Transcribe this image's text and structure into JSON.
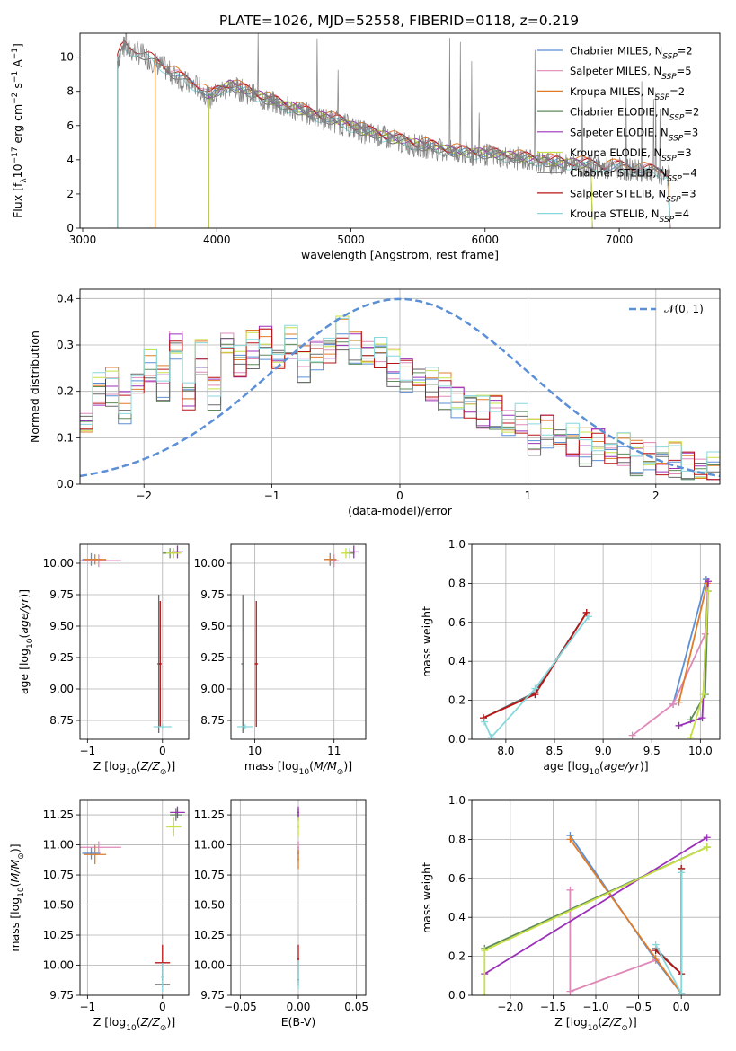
{
  "figure_title": "PLATE=1026, MJD=52558, FIBERID=0118, z=0.219",
  "colors": {
    "Chabrier MILES": "#5b8fd6",
    "Salpeter MILES": "#e088b8",
    "Kroupa MILES": "#e07c28",
    "Chabrier ELODIE": "#5f8a5a",
    "Salpeter ELODIE": "#9b30b8",
    "Kroupa ELODIE": "#c8e046",
    "Chabrier STELIB": "#6a6a6a",
    "Salpeter STELIB": "#b81414",
    "Kroupa STELIB": "#88d8dc",
    "normal_curve": "#5b8fd6",
    "observed_spectrum": "#808080"
  },
  "chart_data": [
    {
      "type": "line",
      "panel": "spectrum",
      "xlabel": "wavelength [Angstrom, rest frame]",
      "ylabel": "Flux [f_λ 10^-17 erg cm^-2 s^-1 A^-1]",
      "xlim": [
        2980,
        7750
      ],
      "ylim": [
        0,
        11.4
      ],
      "xticks": [
        3000,
        4000,
        5000,
        6000,
        7000
      ],
      "yticks": [
        0,
        2,
        4,
        6,
        8,
        10
      ],
      "grid": false,
      "legend_position": "top-right",
      "legend": [
        {
          "name": "Chabrier MILES",
          "n": "2"
        },
        {
          "name": "Salpeter MILES",
          "n": "5"
        },
        {
          "name": "Kroupa MILES",
          "n": "2"
        },
        {
          "name": "Chabrier ELODIE",
          "n": "2"
        },
        {
          "name": "Salpeter ELODIE",
          "n": "3"
        },
        {
          "name": "Kroupa ELODIE",
          "n": "3"
        },
        {
          "name": "Chabrier STELIB",
          "n": "4"
        },
        {
          "name": "Salpeter STELIB",
          "n": "3"
        },
        {
          "name": "Kroupa STELIB",
          "n": "4"
        }
      ],
      "observed": {
        "x": [
          3260,
          3280,
          3300,
          3350,
          3400,
          3450,
          3500,
          3550,
          3600,
          3650,
          3700,
          3750,
          3800,
          3850,
          3900,
          3950,
          4000,
          4100,
          4200,
          4300,
          4400,
          4500,
          4600,
          4700,
          4800,
          4900,
          5000,
          5100,
          5200,
          5300,
          5400,
          5500,
          5600,
          5700,
          5800,
          5900,
          6000,
          6100,
          6200,
          6300,
          6400,
          6500,
          6600,
          6700,
          6800,
          6900,
          7000,
          7100,
          7200,
          7300,
          7380
        ],
        "y": [
          9.8,
          10.2,
          10.6,
          10.4,
          10.3,
          10.1,
          9.9,
          9.6,
          9.4,
          9.1,
          8.9,
          8.6,
          8.4,
          8.3,
          8.0,
          7.6,
          7.9,
          8.3,
          8.0,
          7.7,
          7.4,
          7.1,
          6.9,
          6.6,
          6.4,
          6.2,
          5.9,
          5.6,
          5.4,
          5.2,
          5.0,
          4.8,
          4.7,
          4.5,
          4.4,
          4.3,
          4.3,
          4.2,
          4.1,
          4.0,
          3.9,
          3.8,
          3.7,
          3.7,
          3.6,
          3.5,
          3.5,
          3.4,
          3.3,
          3.2,
          3.1
        ]
      },
      "models": [
        {
          "name": "Chabrier MILES",
          "start": 3540,
          "end": 7380,
          "offset": 0.12
        },
        {
          "name": "Salpeter MILES",
          "start": 3540,
          "end": 7380,
          "offset": 0.25
        },
        {
          "name": "Kroupa MILES",
          "start": 3540,
          "end": 7380,
          "offset": 0.3
        },
        {
          "name": "Chabrier ELODIE",
          "start": 3940,
          "end": 6800,
          "offset": 0.05
        },
        {
          "name": "Salpeter ELODIE",
          "start": 3940,
          "end": 6800,
          "offset": 0.15
        },
        {
          "name": "Kroupa ELODIE",
          "start": 3940,
          "end": 6800,
          "offset": 0.1
        },
        {
          "name": "Chabrier STELIB",
          "start": 3260,
          "end": 7380,
          "offset": 0.0
        },
        {
          "name": "Salpeter STELIB",
          "start": 3260,
          "end": 7380,
          "offset": 0.2
        },
        {
          "name": "Kroupa STELIB",
          "start": 3260,
          "end": 7380,
          "offset": -0.05
        }
      ]
    },
    {
      "type": "histogram",
      "panel": "residuals",
      "xlabel": "(data-model)/error",
      "ylabel": "Normed distribution",
      "xlim": [
        -2.5,
        2.5
      ],
      "ylim": [
        0,
        0.42
      ],
      "xticks": [
        -2,
        -1,
        0,
        1,
        2
      ],
      "yticks": [
        0.0,
        0.1,
        0.2,
        0.3,
        0.4
      ],
      "grid": true,
      "legend_position": "top-right",
      "legend_label": "𝒩(0, 1)",
      "bin_edges": [
        -2.5,
        -2.4,
        -2.3,
        -2.2,
        -2.1,
        -2.0,
        -1.9,
        -1.8,
        -1.7,
        -1.6,
        -1.5,
        -1.4,
        -1.3,
        -1.2,
        -1.1,
        -1.0,
        -0.9,
        -0.8,
        -0.7,
        -0.6,
        -0.5,
        -0.4,
        -0.3,
        -0.2,
        -0.1,
        0.0,
        0.1,
        0.2,
        0.3,
        0.4,
        0.5,
        0.6,
        0.7,
        0.8,
        0.9,
        1.0,
        1.1,
        1.2,
        1.3,
        1.4,
        1.5,
        1.6,
        1.7,
        1.8,
        1.9,
        2.0,
        2.1,
        2.2,
        2.3,
        2.4,
        2.5
      ],
      "base_heights": [
        0.13,
        0.2,
        0.21,
        0.17,
        0.22,
        0.25,
        0.22,
        0.3,
        0.19,
        0.27,
        0.2,
        0.3,
        0.26,
        0.29,
        0.31,
        0.27,
        0.3,
        0.26,
        0.28,
        0.29,
        0.32,
        0.3,
        0.28,
        0.28,
        0.25,
        0.24,
        0.23,
        0.21,
        0.2,
        0.18,
        0.17,
        0.15,
        0.16,
        0.13,
        0.14,
        0.1,
        0.12,
        0.1,
        0.09,
        0.08,
        0.09,
        0.07,
        0.07,
        0.06,
        0.06,
        0.05,
        0.05,
        0.04,
        0.03,
        0.03
      ],
      "normal_curve": {
        "mu": 0,
        "sigma": 1
      }
    },
    {
      "type": "scatter",
      "panel": "age_vs_Z",
      "xlabel": "Z [log10(Z/Z⊙)]",
      "ylabel": "age  [log10(age/yr)]",
      "xlim": [
        -1.1,
        0.35
      ],
      "ylim": [
        8.6,
        10.15
      ],
      "xticks": [
        -1,
        0
      ],
      "yticks": [
        8.75,
        9.0,
        9.25,
        9.5,
        9.75,
        10.0
      ],
      "grid": true,
      "points": [
        {
          "s": "Chabrier MILES",
          "x": -0.95,
          "y": 10.03,
          "xe": 0.12,
          "ye": 0.05
        },
        {
          "s": "Salpeter MILES",
          "x": -0.85,
          "y": 10.02,
          "xe": 0.3,
          "ye": 0.05
        },
        {
          "s": "Kroupa MILES",
          "x": -0.9,
          "y": 10.03,
          "xe": 0.15,
          "ye": 0.04
        },
        {
          "s": "Chabrier ELODIE",
          "x": 0.1,
          "y": 10.08,
          "xe": 0.1,
          "ye": 0.04
        },
        {
          "s": "Salpeter ELODIE",
          "x": 0.2,
          "y": 10.09,
          "xe": 0.08,
          "ye": 0.05
        },
        {
          "s": "Kroupa ELODIE",
          "x": 0.15,
          "y": 10.08,
          "xe": 0.1,
          "ye": 0.04
        },
        {
          "s": "Chabrier STELIB",
          "x": -0.05,
          "y": 9.2,
          "xe": 0.02,
          "ye": 0.55
        },
        {
          "s": "Salpeter STELIB",
          "x": -0.03,
          "y": 9.2,
          "xe": 0.02,
          "ye": 0.5
        },
        {
          "s": "Kroupa STELIB",
          "x": 0.0,
          "y": 8.7,
          "xe": 0.12,
          "ye": 0.02
        }
      ]
    },
    {
      "type": "scatter",
      "panel": "age_vs_mass",
      "xlabel": "mass [log10(M/M⊙)]",
      "ylabel": "",
      "xlim": [
        9.7,
        11.4
      ],
      "ylim": [
        8.6,
        10.15
      ],
      "xticks": [
        10,
        11
      ],
      "yticks": [
        8.75,
        9.0,
        9.25,
        9.5,
        9.75,
        10.0
      ],
      "grid": true,
      "points": [
        {
          "s": "Chabrier MILES",
          "x": 10.95,
          "y": 10.03,
          "xe": 0.08,
          "ye": 0.05
        },
        {
          "s": "Salpeter MILES",
          "x": 11.0,
          "y": 10.02,
          "xe": 0.06,
          "ye": 0.05
        },
        {
          "s": "Kroupa MILES",
          "x": 10.95,
          "y": 10.03,
          "xe": 0.08,
          "ye": 0.04
        },
        {
          "s": "Chabrier ELODIE",
          "x": 11.2,
          "y": 10.08,
          "xe": 0.06,
          "ye": 0.04
        },
        {
          "s": "Salpeter ELODIE",
          "x": 11.25,
          "y": 10.09,
          "xe": 0.06,
          "ye": 0.05
        },
        {
          "s": "Kroupa ELODIE",
          "x": 11.15,
          "y": 10.08,
          "xe": 0.06,
          "ye": 0.04
        },
        {
          "s": "Chabrier STELIB",
          "x": 9.85,
          "y": 9.2,
          "xe": 0.02,
          "ye": 0.55
        },
        {
          "s": "Salpeter STELIB",
          "x": 10.02,
          "y": 9.2,
          "xe": 0.02,
          "ye": 0.5
        },
        {
          "s": "Kroupa STELIB",
          "x": 9.88,
          "y": 8.7,
          "xe": 0.1,
          "ye": 0.02
        }
      ]
    },
    {
      "type": "line",
      "panel": "mass_weight_vs_age",
      "xlabel": "age  [log10(age/yr)]",
      "ylabel": "mass weight",
      "xlim": [
        7.65,
        10.2
      ],
      "ylim": [
        0,
        1.0
      ],
      "xticks": [
        8.0,
        8.5,
        9.0,
        9.5,
        10.0
      ],
      "yticks": [
        0.0,
        0.2,
        0.4,
        0.6,
        0.8,
        1.0
      ],
      "grid": true,
      "series": [
        {
          "s": "Chabrier MILES",
          "x": [
            9.72,
            10.06
          ],
          "y": [
            0.18,
            0.82
          ]
        },
        {
          "s": "Salpeter MILES",
          "x": [
            9.3,
            9.72,
            10.05
          ],
          "y": [
            0.02,
            0.18,
            0.54
          ]
        },
        {
          "s": "Kroupa MILES",
          "x": [
            9.78,
            10.07
          ],
          "y": [
            0.19,
            0.8
          ]
        },
        {
          "s": "Chabrier ELODIE",
          "x": [
            9.9,
            10.05,
            10.08
          ],
          "y": [
            0.1,
            0.23,
            0.76
          ]
        },
        {
          "s": "Salpeter ELODIE",
          "x": [
            9.78,
            10.02,
            10.08
          ],
          "y": [
            0.07,
            0.11,
            0.81
          ]
        },
        {
          "s": "Kroupa ELODIE",
          "x": [
            9.9,
            10.03,
            10.08
          ],
          "y": [
            0.01,
            0.23,
            0.76
          ]
        },
        {
          "s": "Chabrier STELIB",
          "x": [
            7.77,
            8.3,
            8.83
          ],
          "y": [
            0.11,
            0.24,
            0.65
          ]
        },
        {
          "s": "Salpeter STELIB",
          "x": [
            7.77,
            8.3,
            8.83
          ],
          "y": [
            0.11,
            0.23,
            0.65
          ]
        },
        {
          "s": "Kroupa STELIB",
          "x": [
            7.78,
            7.85,
            8.3,
            8.85
          ],
          "y": [
            0.09,
            0.01,
            0.26,
            0.63
          ]
        }
      ]
    },
    {
      "type": "scatter",
      "panel": "mass_vs_Z",
      "xlabel": "Z [log10(Z/Z⊙)]",
      "ylabel": "mass [log10(M/M⊙)]",
      "xlim": [
        -1.1,
        0.35
      ],
      "ylim": [
        9.75,
        11.37
      ],
      "xticks": [
        -1,
        0
      ],
      "yticks": [
        9.75,
        10.0,
        10.25,
        10.5,
        10.75,
        11.0,
        11.25
      ],
      "grid": true,
      "points": [
        {
          "s": "Chabrier MILES",
          "x": -0.95,
          "y": 10.93,
          "xe": 0.12,
          "ye": 0.05
        },
        {
          "s": "Salpeter MILES",
          "x": -0.85,
          "y": 10.98,
          "xe": 0.3,
          "ye": 0.05
        },
        {
          "s": "Kroupa MILES",
          "x": -0.9,
          "y": 10.92,
          "xe": 0.15,
          "ye": 0.08
        },
        {
          "s": "Chabrier ELODIE",
          "x": 0.18,
          "y": 11.25,
          "xe": 0.08,
          "ye": 0.05
        },
        {
          "s": "Salpeter ELODIE",
          "x": 0.2,
          "y": 11.27,
          "xe": 0.1,
          "ye": 0.05
        },
        {
          "s": "Kroupa ELODIE",
          "x": 0.15,
          "y": 11.15,
          "xe": 0.1,
          "ye": 0.08
        },
        {
          "s": "Chabrier STELIB",
          "x": 0.0,
          "y": 9.84,
          "xe": 0.1,
          "ye": 0.02
        },
        {
          "s": "Salpeter STELIB",
          "x": 0.0,
          "y": 10.02,
          "xe": 0.1,
          "ye": 0.15
        },
        {
          "s": "Kroupa STELIB",
          "x": 0.0,
          "y": 9.9,
          "xe": 0.02,
          "ye": 0.12
        }
      ]
    },
    {
      "type": "scatter",
      "panel": "mass_vs_EBV",
      "xlabel": "E(B-V)",
      "ylabel": "",
      "xlim": [
        -0.058,
        0.058
      ],
      "ylim": [
        9.75,
        11.37
      ],
      "xticks": [
        -0.05,
        0.0,
        0.05
      ],
      "yticks": [
        9.75,
        10.0,
        10.25,
        10.5,
        10.75,
        11.0,
        11.25
      ],
      "grid": true,
      "points": [
        {
          "s": "Chabrier MILES",
          "x": 0.0,
          "y": 10.93,
          "xe": 0.0,
          "ye": 0.05
        },
        {
          "s": "Salpeter MILES",
          "x": 0.0,
          "y": 10.98,
          "xe": 0.0,
          "ye": 0.05
        },
        {
          "s": "Kroupa MILES",
          "x": 0.0,
          "y": 10.88,
          "xe": 0.0,
          "ye": 0.08
        },
        {
          "s": "Chabrier ELODIE",
          "x": 0.0,
          "y": 11.25,
          "xe": 0.0,
          "ye": 0.05
        },
        {
          "s": "Salpeter ELODIE",
          "x": 0.0,
          "y": 11.27,
          "xe": 0.0,
          "ye": 0.05
        },
        {
          "s": "Kroupa ELODIE",
          "x": 0.0,
          "y": 11.15,
          "xe": 0.0,
          "ye": 0.08
        },
        {
          "s": "Chabrier STELIB",
          "x": 0.0,
          "y": 9.88,
          "xe": 0.0,
          "ye": 0.05
        },
        {
          "s": "Salpeter STELIB",
          "x": 0.0,
          "y": 10.05,
          "xe": 0.0,
          "ye": 0.12
        },
        {
          "s": "Kroupa STELIB",
          "x": 0.0,
          "y": 9.92,
          "xe": 0.0,
          "ye": 0.12
        }
      ]
    },
    {
      "type": "line",
      "panel": "mass_weight_vs_Z",
      "xlabel": "Z [log10(Z/Z⊙)]",
      "ylabel": "mass weight",
      "xlim": [
        -2.45,
        0.45
      ],
      "ylim": [
        0,
        1.0
      ],
      "xticks": [
        -2.0,
        -1.5,
        -1.0,
        -0.5,
        0.0
      ],
      "yticks": [
        0.0,
        0.2,
        0.4,
        0.6,
        0.8,
        1.0
      ],
      "grid": true,
      "series": [
        {
          "s": "Chabrier MILES",
          "x": [
            -1.3,
            -0.3,
            0.0
          ],
          "y": [
            0.82,
            0.18,
            0.01
          ]
        },
        {
          "s": "Salpeter MILES",
          "x": [
            -1.3,
            -1.3,
            -0.3
          ],
          "y": [
            0.54,
            0.02,
            0.18
          ]
        },
        {
          "s": "Kroupa MILES",
          "x": [
            -1.3,
            -0.3,
            0.0
          ],
          "y": [
            0.8,
            0.19,
            0.01
          ]
        },
        {
          "s": "Chabrier ELODIE",
          "x": [
            -2.3,
            0.3
          ],
          "y": [
            0.24,
            0.76
          ]
        },
        {
          "s": "Salpeter ELODIE",
          "x": [
            -2.3,
            0.3
          ],
          "y": [
            0.11,
            0.81
          ]
        },
        {
          "s": "Kroupa ELODIE",
          "x": [
            -2.3,
            -2.3,
            0.3
          ],
          "y": [
            0.0,
            0.23,
            0.76
          ]
        },
        {
          "s": "Chabrier STELIB",
          "x": [
            -0.3,
            0.0,
            0.0
          ],
          "y": [
            0.24,
            0.11,
            0.65
          ]
        },
        {
          "s": "Salpeter STELIB",
          "x": [
            -0.3,
            0.0,
            0.0
          ],
          "y": [
            0.23,
            0.11,
            0.65
          ]
        },
        {
          "s": "Kroupa STELIB",
          "x": [
            -0.3,
            0.0,
            0.0
          ],
          "y": [
            0.26,
            0.01,
            0.63
          ]
        }
      ]
    }
  ]
}
